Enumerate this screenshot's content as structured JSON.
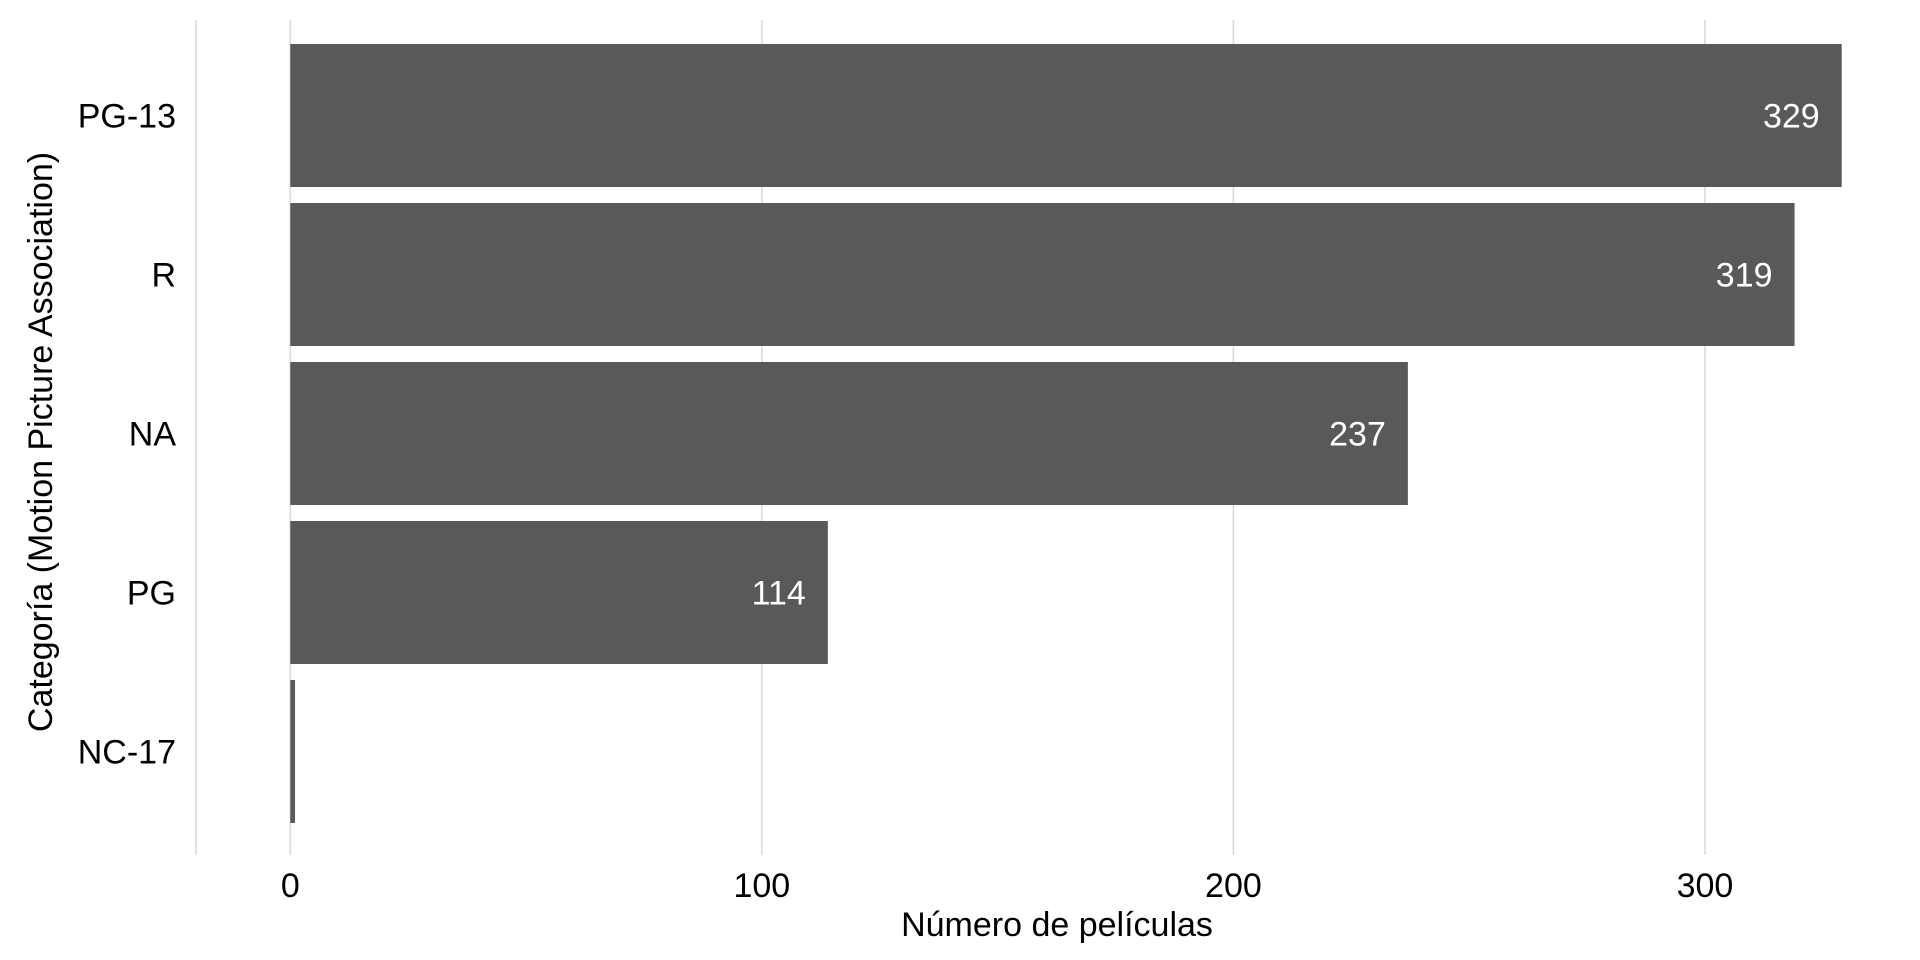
{
  "chart_data": {
    "type": "bar",
    "orientation": "horizontal",
    "categories": [
      "PG-13",
      "R",
      "NA",
      "PG",
      "NC-17"
    ],
    "values": [
      329,
      319,
      237,
      114,
      1
    ],
    "data_labels": [
      "329",
      "319",
      "237",
      "114",
      ""
    ],
    "xlabel": "Número de películas",
    "ylabel": "Categoría (Motion Picture Association)",
    "xlim": [
      -20,
      342
    ],
    "x_ticks": [
      0,
      100,
      200,
      300
    ],
    "x_tick_labels": [
      "0",
      "100",
      "200",
      "300"
    ],
    "grid": "vertical major gridlines",
    "legend": "none",
    "colors": {
      "bar": "#595959",
      "grid": "#d9d9d9",
      "data_label": "#ffffff",
      "background": "#ffffff"
    }
  }
}
